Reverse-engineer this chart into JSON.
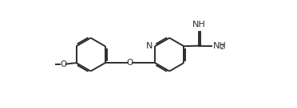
{
  "line_color": "#2d2d2d",
  "bg_color": "#ffffff",
  "line_width": 1.4,
  "dbo": 0.06,
  "figsize": [
    3.72,
    1.36
  ],
  "dpi": 100,
  "xlim": [
    0,
    9.3
  ],
  "ylim": [
    0,
    3.4
  ]
}
